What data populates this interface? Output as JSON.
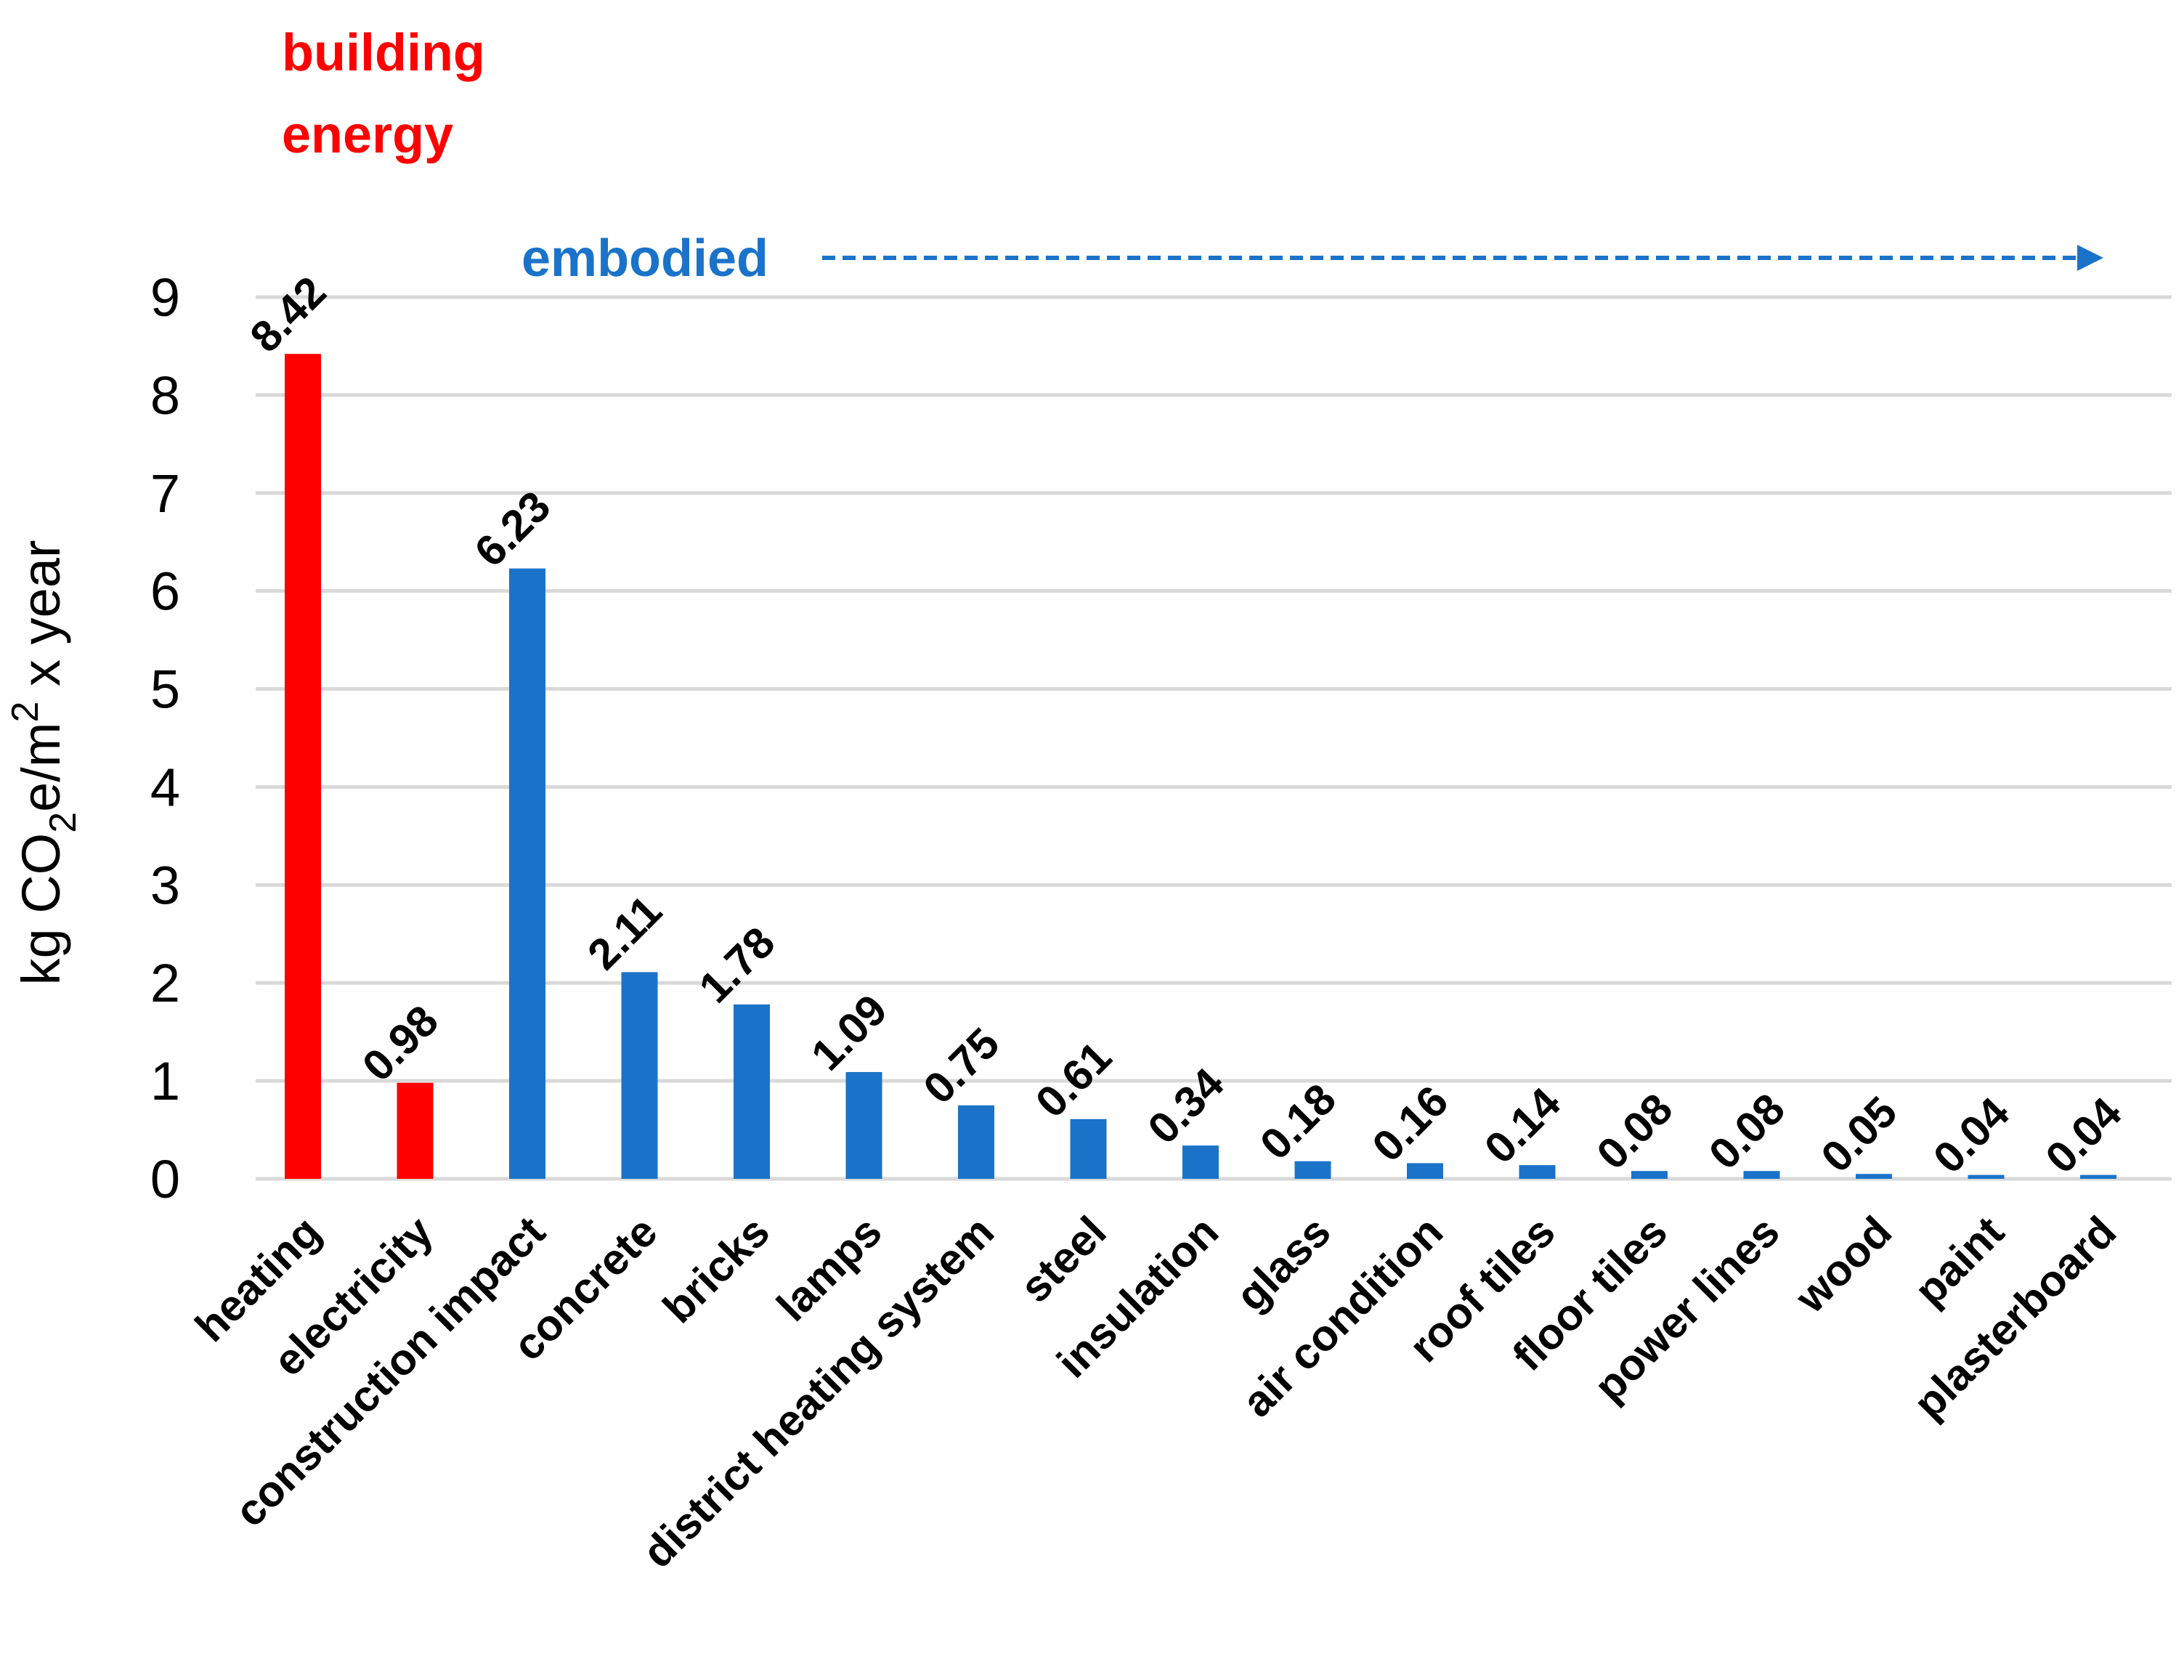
{
  "chart_data": {
    "type": "bar",
    "title": "",
    "xlabel": "",
    "ylabel": {
      "prefix": "kg CO",
      "sub": "2",
      "middle": "e/m",
      "sup": "2",
      "suffix": " x year"
    },
    "ylim": [
      0,
      9
    ],
    "yticks": [
      "0",
      "1",
      "2",
      "3",
      "4",
      "5",
      "6",
      "7",
      "8",
      "9"
    ],
    "grid": true,
    "categories": [
      "heating",
      "electricity",
      "construction impact",
      "concrete",
      "bricks",
      "lamps",
      "district heating system",
      "steel",
      "insulation",
      "glass",
      "air condition",
      "roof tiles",
      "floor tiles",
      "power lines",
      "wood",
      "paint",
      "plasterboard"
    ],
    "values": [
      8.42,
      0.98,
      6.23,
      2.11,
      1.78,
      1.09,
      0.75,
      0.61,
      0.34,
      0.18,
      0.16,
      0.14,
      0.08,
      0.08,
      0.05,
      0.04,
      0.04
    ],
    "value_labels": [
      "8.42",
      "0.98",
      "6.23",
      "2.11",
      "1.78",
      "1.09",
      "0.75",
      "0.61",
      "0.34",
      "0.18",
      "0.16",
      "0.14",
      "0.08",
      "0.08",
      "0.05",
      "0.04",
      "0.04"
    ],
    "groups": [
      {
        "name": "building energy",
        "lines": [
          "building",
          "energy"
        ],
        "color": "#ff0000",
        "count": 2
      },
      {
        "name": "embodied",
        "color": "#1b73c9",
        "count": 15
      }
    ]
  }
}
